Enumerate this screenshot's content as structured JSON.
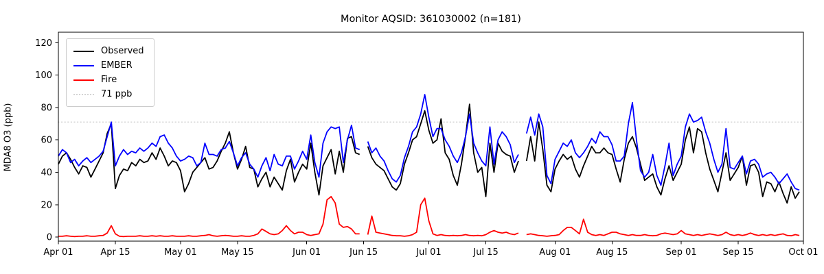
{
  "chart_data": {
    "type": "line",
    "title": "Monitor AQSID: 361030002 (n=181)",
    "ylabel": "MDA8 O3 (ppb)",
    "x_unit": "days since Apr 01",
    "xlim": [
      0,
      183
    ],
    "ylim": [
      -2.5,
      126.5
    ],
    "grid": false,
    "yticks": [
      0,
      20,
      40,
      60,
      80,
      100,
      120
    ],
    "xticks": [
      {
        "day": 0,
        "label": "Apr 01"
      },
      {
        "day": 14,
        "label": "Apr 15"
      },
      {
        "day": 30,
        "label": "May 01"
      },
      {
        "day": 44,
        "label": "May 15"
      },
      {
        "day": 61,
        "label": "Jun 01"
      },
      {
        "day": 75,
        "label": "Jun 15"
      },
      {
        "day": 91,
        "label": "Jul 01"
      },
      {
        "day": 105,
        "label": "Jul 15"
      },
      {
        "day": 122,
        "label": "Aug 01"
      },
      {
        "day": 136,
        "label": "Aug 15"
      },
      {
        "day": 153,
        "label": "Sep 01"
      },
      {
        "day": 167,
        "label": "Sep 15"
      },
      {
        "day": 183,
        "label": "Oct 01"
      }
    ],
    "threshold": {
      "value": 71,
      "label": "71 ppb",
      "color": "#d3d3d3",
      "style": "dotted"
    },
    "legend": {
      "position": "upper-left",
      "items": [
        {
          "label": "Observed",
          "color": "#000000",
          "style": "solid"
        },
        {
          "label": "EMBER",
          "color": "#0000ff",
          "style": "solid"
        },
        {
          "label": "Fire",
          "color": "#ff0000",
          "style": "solid"
        },
        {
          "label": "71 ppb",
          "color": "#d3d3d3",
          "style": "dotted"
        }
      ]
    },
    "series": [
      {
        "name": "Observed",
        "color": "#000000",
        "values": [
          45,
          50,
          52,
          48,
          43,
          39,
          44,
          43,
          37,
          42,
          47,
          52,
          64,
          70,
          30,
          38,
          42,
          41,
          46,
          44,
          48,
          46,
          47,
          52,
          48,
          55,
          50,
          44,
          47,
          46,
          41,
          28,
          33,
          40,
          43,
          46,
          49,
          42,
          43,
          47,
          53,
          58,
          65,
          52,
          42,
          48,
          56,
          43,
          42,
          31,
          36,
          40,
          31,
          37,
          33,
          29,
          41,
          48,
          34,
          40,
          45,
          42,
          58,
          40,
          26,
          44,
          49,
          54,
          39,
          53,
          40,
          61,
          62,
          52,
          51,
          null,
          56,
          49,
          45,
          43,
          41,
          36,
          31,
          29,
          33,
          45,
          52,
          60,
          62,
          70,
          78,
          66,
          58,
          60,
          73,
          52,
          48,
          38,
          32,
          45,
          62,
          82,
          52,
          40,
          43,
          25,
          58,
          40,
          58,
          53,
          51,
          50,
          40,
          47,
          null,
          47,
          62,
          47,
          71,
          54,
          32,
          28,
          42,
          47,
          51,
          48,
          50,
          42,
          37,
          44,
          50,
          56,
          52,
          52,
          55,
          52,
          51,
          42,
          34,
          48,
          58,
          62,
          55,
          45,
          35,
          37,
          39,
          31,
          26,
          36,
          44,
          35,
          40,
          45,
          60,
          68,
          52,
          67,
          65,
          52,
          42,
          35,
          28,
          40,
          52,
          35,
          39,
          43,
          50,
          32,
          44,
          45,
          40,
          25,
          34,
          33,
          28,
          34,
          27,
          21,
          31,
          24,
          28
        ]
      },
      {
        "name": "EMBER",
        "color": "#0000ff",
        "values": [
          50,
          54,
          52,
          46,
          48,
          44,
          47,
          49,
          46,
          48,
          50,
          53,
          62,
          71,
          44,
          50,
          54,
          51,
          53,
          52,
          55,
          53,
          55,
          58,
          56,
          62,
          63,
          58,
          55,
          50,
          47,
          48,
          50,
          49,
          44,
          46,
          58,
          51,
          51,
          50,
          54,
          55,
          59,
          52,
          44,
          49,
          52,
          45,
          42,
          37,
          44,
          49,
          41,
          51,
          45,
          44,
          50,
          50,
          42,
          47,
          53,
          48,
          63,
          46,
          37,
          58,
          65,
          68,
          67,
          68,
          46,
          60,
          69,
          55,
          54,
          null,
          59,
          52,
          55,
          50,
          47,
          41,
          36,
          34,
          38,
          49,
          56,
          65,
          68,
          76,
          88,
          74,
          62,
          67,
          67,
          60,
          56,
          50,
          46,
          52,
          62,
          76,
          58,
          52,
          47,
          44,
          68,
          45,
          60,
          65,
          62,
          57,
          46,
          51,
          null,
          64,
          74,
          63,
          76,
          68,
          38,
          33,
          48,
          53,
          58,
          56,
          60,
          52,
          49,
          52,
          56,
          61,
          58,
          65,
          62,
          62,
          57,
          47,
          47,
          50,
          70,
          83,
          60,
          41,
          37,
          40,
          51,
          38,
          32,
          44,
          58,
          38,
          45,
          50,
          68,
          76,
          71,
          72,
          74,
          65,
          58,
          48,
          40,
          45,
          67,
          43,
          42,
          46,
          50,
          39,
          47,
          48,
          45,
          37,
          39,
          40,
          37,
          33,
          36,
          39,
          34,
          30,
          29
        ]
      },
      {
        "name": "Fire",
        "color": "#ff0000",
        "values": [
          0.5,
          0.5,
          0.8,
          0.5,
          0.3,
          0.5,
          0.5,
          0.8,
          0.5,
          0.5,
          0.8,
          1,
          2.5,
          7,
          2,
          0.5,
          0.3,
          0.5,
          0.5,
          0.5,
          0.8,
          0.5,
          0.5,
          0.8,
          0.5,
          0.8,
          0.5,
          0.5,
          0.8,
          0.5,
          0.5,
          0.5,
          0.8,
          0.5,
          0.5,
          0.8,
          1,
          1.5,
          0.8,
          0.5,
          0.8,
          1,
          0.8,
          0.5,
          0.5,
          0.8,
          0.5,
          0.5,
          1,
          2,
          5,
          3.5,
          2,
          1.5,
          2,
          4,
          7,
          4,
          2,
          3,
          3,
          1.5,
          1,
          1.5,
          2,
          8,
          23,
          25,
          21,
          8,
          6,
          6.5,
          5,
          2,
          2,
          null,
          1.5,
          13,
          3,
          2.5,
          2,
          1.5,
          1,
          0.8,
          0.8,
          0.5,
          0.8,
          1.5,
          3,
          20,
          24,
          10,
          2,
          1,
          1.5,
          1,
          0.8,
          1,
          0.8,
          1,
          1.5,
          1,
          0.8,
          1,
          0.8,
          1.5,
          3,
          4,
          3,
          2.5,
          3,
          2,
          1.5,
          2.5,
          null,
          1.5,
          2,
          1.5,
          1,
          0.8,
          0.5,
          0.8,
          1,
          1.5,
          4,
          6,
          6,
          4,
          2,
          11,
          3,
          1.5,
          1,
          1.5,
          1,
          2,
          3,
          3,
          2,
          1.5,
          1,
          1.5,
          1,
          1,
          1.5,
          1,
          0.8,
          1,
          2,
          2.5,
          2,
          1.5,
          2,
          4,
          2,
          1.5,
          1,
          1.5,
          1,
          1.5,
          2,
          1.5,
          1,
          1.5,
          3,
          1.5,
          1,
          1.5,
          1,
          1.5,
          2.5,
          1.5,
          1,
          1.5,
          1,
          1.5,
          1,
          1.5,
          2,
          1,
          0.8,
          1.5,
          1
        ]
      }
    ]
  }
}
